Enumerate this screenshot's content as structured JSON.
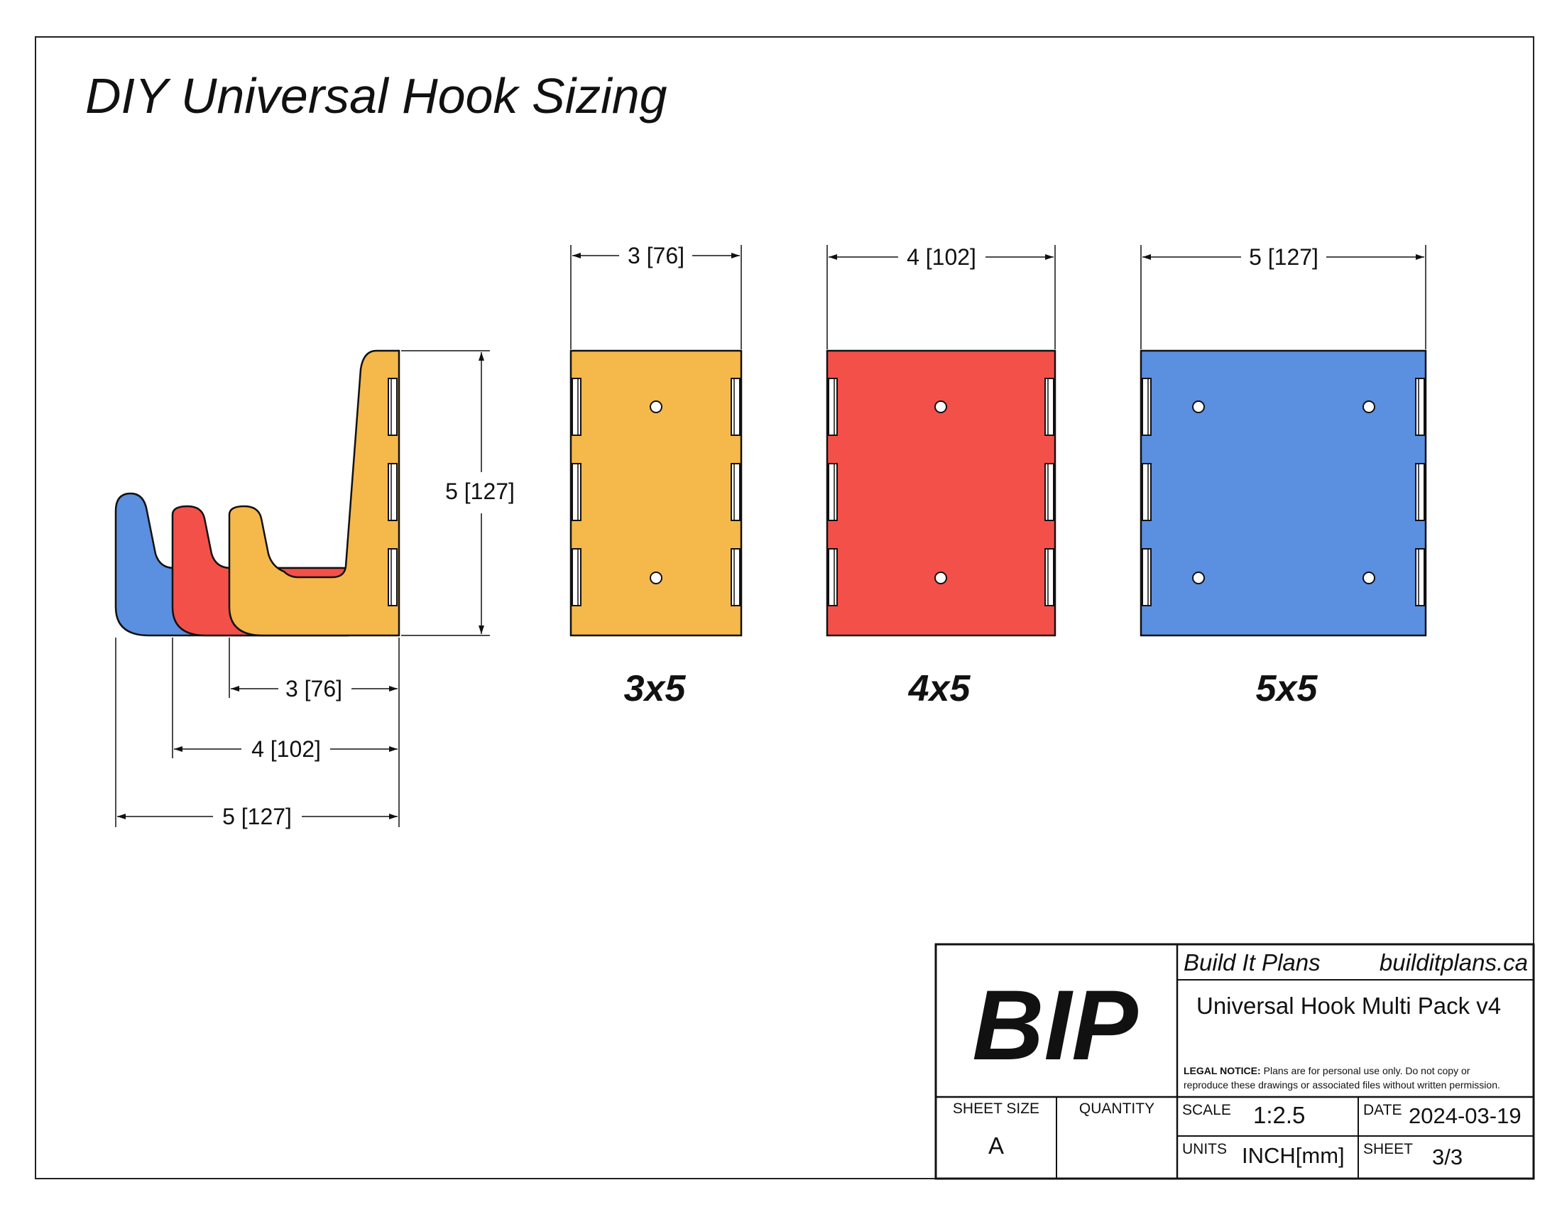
{
  "sheet_title": "DIY Universal Hook Sizing",
  "side_view": {
    "height_dim": "5 [127]",
    "depth_dims": [
      "3 [76]",
      "4 [102]",
      "5 [127]"
    ]
  },
  "front_views": [
    {
      "width_dim": "3 [76]",
      "label": "3x5",
      "color": "#F5B84A"
    },
    {
      "width_dim": "4 [102]",
      "label": "4x5",
      "color": "#F4504A"
    },
    {
      "width_dim": "5 [127]",
      "label": "5x5",
      "color": "#5B8FE0"
    }
  ],
  "colors": {
    "yellow": "#F5B84A",
    "red": "#F4504A",
    "blue": "#5B8FE0",
    "line": "#111111"
  },
  "title_block": {
    "logo": "BIP",
    "company": "Build It Plans",
    "website": "builditplans.ca",
    "drawing_title": "Universal Hook Multi Pack v4",
    "legal_label": "LEGAL NOTICE:",
    "legal_text_1": "Plans are for personal use only. Do not copy or",
    "legal_text_2": "reproduce these drawings or associated files without written permission.",
    "sheet_size_label": "SHEET SIZE",
    "sheet_size": "A",
    "quantity_label": "QUANTITY",
    "quantity": "",
    "scale_label": "SCALE",
    "scale": "1:2.5",
    "date_label": "DATE",
    "date": "2024-03-19",
    "units_label": "UNITS",
    "units": "INCH[mm]",
    "sheet_label": "SHEET",
    "sheet": "3/3"
  }
}
